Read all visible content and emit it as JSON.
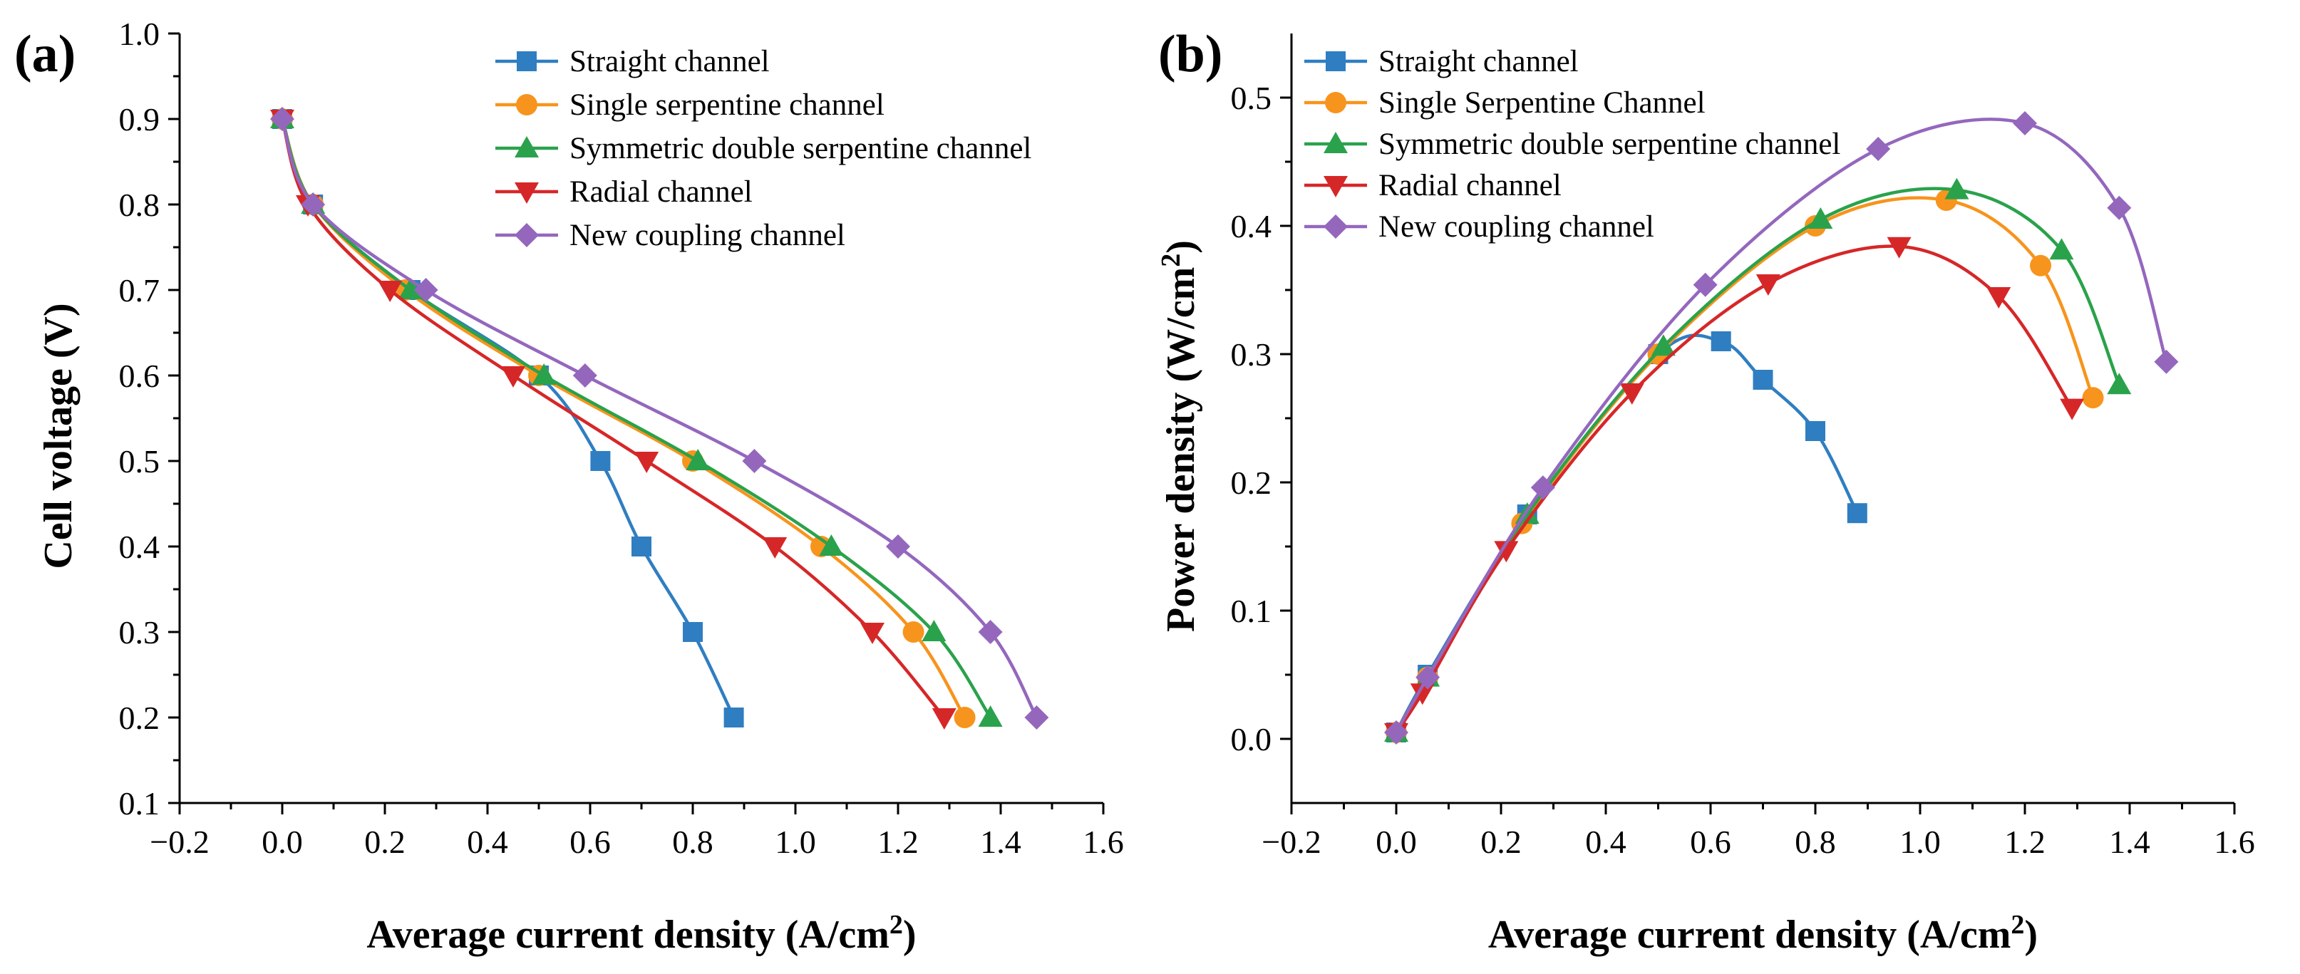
{
  "chart_data": [
    {
      "panel": "(a)",
      "type": "line",
      "xlabel": "Average current density (A/cm",
      "xlabel_sup": "2",
      "xlabel_end": ")",
      "ylabel": "Cell voltage (V)",
      "xlim": [
        -0.2,
        1.6
      ],
      "ylim": [
        0.1,
        1.0
      ],
      "xticks": [
        "−0.2",
        "0.0",
        "0.2",
        "0.4",
        "0.6",
        "0.8",
        "1.0",
        "1.2",
        "1.4",
        "1.6"
      ],
      "xtick_values": [
        -0.2,
        0.0,
        0.2,
        0.4,
        0.6,
        0.8,
        1.0,
        1.2,
        1.4,
        1.6
      ],
      "yticks": [
        "0.1",
        "0.2",
        "0.3",
        "0.4",
        "0.5",
        "0.6",
        "0.7",
        "0.8",
        "0.9",
        "1.0"
      ],
      "ytick_values": [
        0.1,
        0.2,
        0.3,
        0.4,
        0.5,
        0.6,
        0.7,
        0.8,
        0.9,
        1.0
      ],
      "series": [
        {
          "name": "Straight channel",
          "color": "#2f7ec1",
          "marker": "square",
          "x": [
            0.0,
            0.06,
            0.25,
            0.5,
            0.62,
            0.7,
            0.8,
            0.88
          ],
          "y": [
            0.9,
            0.8,
            0.7,
            0.6,
            0.5,
            0.4,
            0.3,
            0.2
          ]
        },
        {
          "name": "Single serpentine channel",
          "color": "#f7941d",
          "marker": "circle",
          "x": [
            0.0,
            0.06,
            0.24,
            0.5,
            0.8,
            1.05,
            1.23,
            1.33
          ],
          "y": [
            0.9,
            0.8,
            0.7,
            0.6,
            0.5,
            0.4,
            0.3,
            0.2
          ]
        },
        {
          "name": "Symmetric double serpentine channel",
          "color": "#2aa24b",
          "marker": "triangle-up",
          "x": [
            0.0,
            0.06,
            0.25,
            0.51,
            0.81,
            1.07,
            1.27,
            1.38
          ],
          "y": [
            0.9,
            0.8,
            0.7,
            0.6,
            0.5,
            0.4,
            0.3,
            0.2
          ]
        },
        {
          "name": "Radial channel",
          "color": "#d62728",
          "marker": "triangle-down",
          "x": [
            0.0,
            0.05,
            0.21,
            0.45,
            0.71,
            0.96,
            1.15,
            1.29
          ],
          "y": [
            0.9,
            0.8,
            0.7,
            0.6,
            0.5,
            0.4,
            0.3,
            0.2
          ]
        },
        {
          "name": "New coupling channel",
          "color": "#9467bd",
          "marker": "diamond",
          "x": [
            0.0,
            0.06,
            0.28,
            0.59,
            0.92,
            1.2,
            1.38,
            1.47
          ],
          "y": [
            0.9,
            0.8,
            0.7,
            0.6,
            0.5,
            0.4,
            0.3,
            0.2
          ]
        }
      ],
      "legend_position": "top-right"
    },
    {
      "panel": "(b)",
      "type": "line",
      "xlabel": "Average current density (A/cm",
      "xlabel_sup": "2",
      "xlabel_end": ")",
      "ylabel": "Power density (W/cm",
      "ylabel_sup": "2",
      "ylabel_end": ")",
      "xlim": [
        -0.2,
        1.6
      ],
      "ylim": [
        -0.05,
        0.55
      ],
      "xticks": [
        "−0.2",
        "0.0",
        "0.2",
        "0.4",
        "0.6",
        "0.8",
        "1.0",
        "1.2",
        "1.4",
        "1.6"
      ],
      "xtick_values": [
        -0.2,
        0.0,
        0.2,
        0.4,
        0.6,
        0.8,
        1.0,
        1.2,
        1.4,
        1.6
      ],
      "yticks": [
        "0.0",
        "0.1",
        "0.2",
        "0.3",
        "0.4",
        "0.5"
      ],
      "ytick_values": [
        0.0,
        0.1,
        0.2,
        0.3,
        0.4,
        0.5
      ],
      "series": [
        {
          "name": "Straight channel",
          "color": "#2f7ec1",
          "marker": "square",
          "x": [
            0.0,
            0.06,
            0.25,
            0.5,
            0.62,
            0.7,
            0.8,
            0.88
          ],
          "y": [
            0.005,
            0.05,
            0.175,
            0.3,
            0.31,
            0.28,
            0.24,
            0.176
          ]
        },
        {
          "name": "Single Serpentine Channel",
          "color": "#f7941d",
          "marker": "circle",
          "x": [
            0.0,
            0.06,
            0.24,
            0.5,
            0.8,
            1.05,
            1.23,
            1.33
          ],
          "y": [
            0.005,
            0.048,
            0.168,
            0.3,
            0.4,
            0.42,
            0.369,
            0.266
          ]
        },
        {
          "name": "Symmetric double serpentine channel",
          "color": "#2aa24b",
          "marker": "triangle-up",
          "x": [
            0.0,
            0.06,
            0.25,
            0.51,
            0.81,
            1.07,
            1.27,
            1.38
          ],
          "y": [
            0.005,
            0.048,
            0.175,
            0.306,
            0.405,
            0.428,
            0.381,
            0.276
          ]
        },
        {
          "name": "Radial channel",
          "color": "#d62728",
          "marker": "triangle-down",
          "x": [
            0.0,
            0.05,
            0.21,
            0.45,
            0.71,
            0.96,
            1.15,
            1.29
          ],
          "y": [
            0.005,
            0.036,
            0.147,
            0.27,
            0.355,
            0.384,
            0.345,
            0.258
          ]
        },
        {
          "name": "New coupling channel",
          "color": "#9467bd",
          "marker": "diamond",
          "x": [
            0.0,
            0.06,
            0.28,
            0.59,
            0.92,
            1.2,
            1.38,
            1.47
          ],
          "y": [
            0.005,
            0.048,
            0.196,
            0.354,
            0.46,
            0.48,
            0.414,
            0.294
          ]
        }
      ],
      "legend_position": "top-left"
    }
  ]
}
